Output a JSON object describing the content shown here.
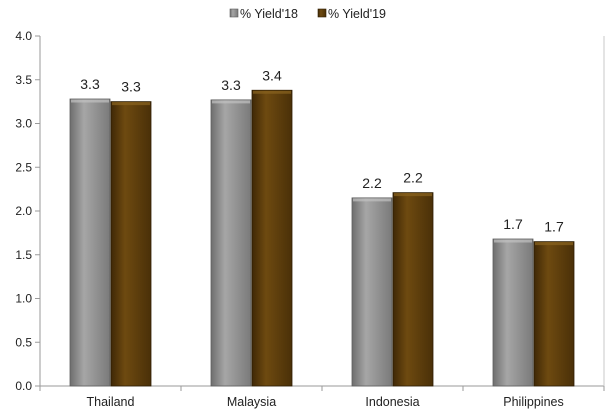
{
  "chart_data": {
    "type": "bar",
    "categories": [
      "Thailand",
      "Malaysia",
      "Indonesia",
      "Philippines"
    ],
    "series": [
      {
        "name": "% Yield'18",
        "values": [
          3.28,
          3.27,
          2.15,
          1.68
        ],
        "labels": [
          "3.3",
          "3.3",
          "2.2",
          "1.7"
        ],
        "color": "#8c8c8c"
      },
      {
        "name": "% Yield'19",
        "values": [
          3.25,
          3.38,
          2.21,
          1.65
        ],
        "labels": [
          "3.3",
          "3.4",
          "2.2",
          "1.7"
        ],
        "color": "#5c3d0a"
      }
    ],
    "ylim": [
      0,
      4.0
    ],
    "yticks": [
      "0.0",
      "0.5",
      "1.0",
      "1.5",
      "2.0",
      "2.5",
      "3.0",
      "3.5",
      "4.0"
    ],
    "legend_position": "top-center",
    "grid": false
  }
}
